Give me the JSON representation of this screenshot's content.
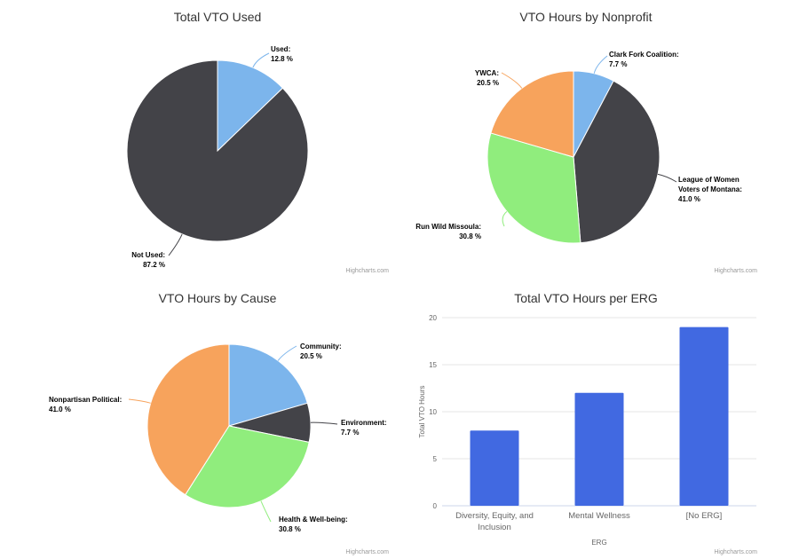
{
  "credit": "Highcharts.com",
  "chart_data": [
    {
      "type": "pie",
      "title": "Total VTO Used",
      "slices": [
        {
          "name": "Used",
          "value": 12.8,
          "label": "12.8 %",
          "color": "#7cb5ec"
        },
        {
          "name": "Not Used",
          "value": 87.2,
          "label": "87.2 %",
          "color": "#434348"
        }
      ]
    },
    {
      "type": "pie",
      "title": "VTO Hours by Nonprofit",
      "slices": [
        {
          "name": "Clark Fork Coalition",
          "value": 7.7,
          "label": "7.7 %",
          "color": "#7cb5ec"
        },
        {
          "name": "League of Women Voters of Montana",
          "value": 41.0,
          "label": "41.0 %",
          "color": "#434348"
        },
        {
          "name": "Run Wild Missoula",
          "value": 30.8,
          "label": "30.8 %",
          "color": "#90ed7d"
        },
        {
          "name": "YWCA",
          "value": 20.5,
          "label": "20.5 %",
          "color": "#f7a35c"
        }
      ]
    },
    {
      "type": "pie",
      "title": "VTO Hours by Cause",
      "slices": [
        {
          "name": "Community",
          "value": 20.5,
          "label": "20.5 %",
          "color": "#7cb5ec"
        },
        {
          "name": "Environment",
          "value": 7.7,
          "label": "7.7 %",
          "color": "#434348"
        },
        {
          "name": "Health & Well-being",
          "value": 30.8,
          "label": "30.8 %",
          "color": "#90ed7d"
        },
        {
          "name": "Nonpartisan Political",
          "value": 41.0,
          "label": "41.0 %",
          "color": "#f7a35c"
        }
      ]
    },
    {
      "type": "bar",
      "title": "Total VTO Hours per ERG",
      "categories": [
        "Diversity, Equity, and Inclusion",
        "Mental Wellness",
        "[No ERG]"
      ],
      "values": [
        8,
        12,
        19
      ],
      "xlabel": "ERG",
      "ylabel": "Total VTO Hours",
      "ylim": [
        0,
        20
      ],
      "yticks": [
        0,
        5,
        10,
        15,
        20
      ],
      "color": "#4169e1",
      "grid": true
    }
  ]
}
